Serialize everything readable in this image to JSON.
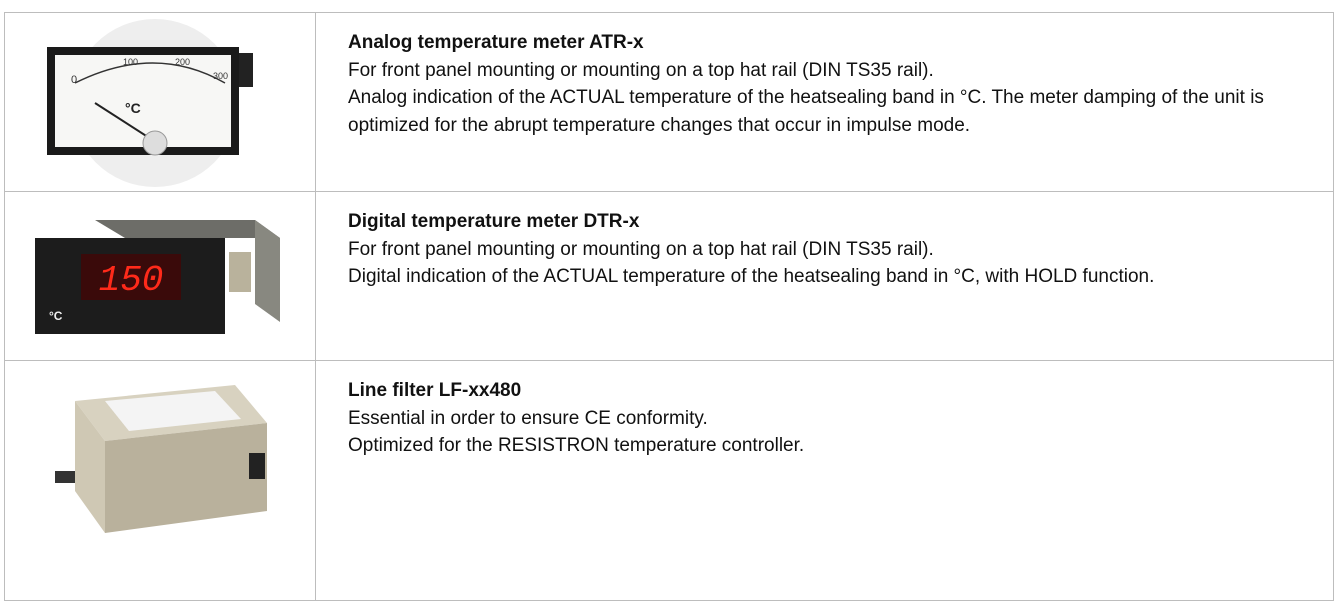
{
  "items": [
    {
      "title": "Analog temperature meter ATR-x",
      "lines": [
        "For front panel mounting or mounting on a top hat rail (DIN TS35 rail).",
        "Analog indication of the ACTUAL temperature of the heatsealing band in °C. The meter damping of the unit is optimized for the abrupt temperature changes that occur in impulse mode."
      ]
    },
    {
      "title": "Digital temperature meter DTR-x",
      "lines": [
        "For front panel mounting or mounting on a top hat rail (DIN TS35 rail).",
        "Digital indication of the ACTUAL temperature of the heatsealing band in °C, with HOLD function."
      ]
    },
    {
      "title": "Line filter LF-xx480",
      "lines": [
        "Essential in order to ensure CE conformity.",
        "Optimized for the RESISTRON temperature controller."
      ]
    }
  ]
}
